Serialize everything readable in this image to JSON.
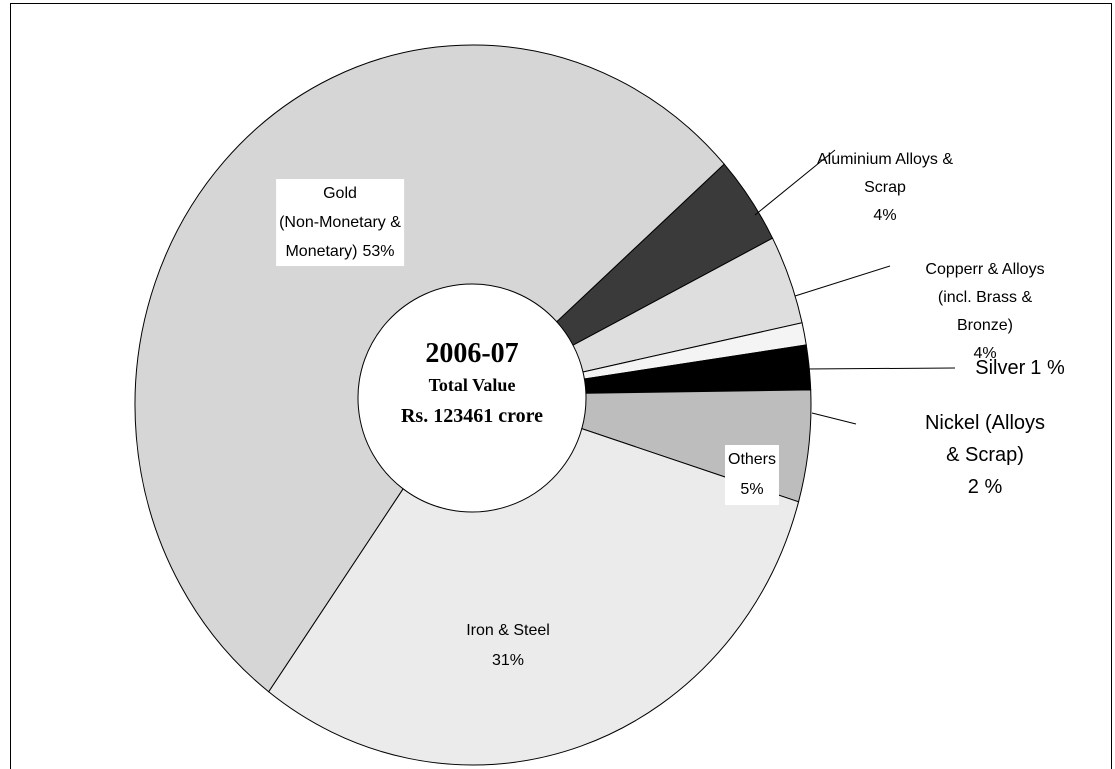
{
  "chart_data": {
    "type": "donut",
    "categories": [
      "Aluminium Alloys &\nScrap",
      "Copperr & Alloys\n(incl. Brass & Bronze)",
      "Silver",
      "Nickel (Alloys & Scrap)",
      "Others",
      "Iron & Steel",
      "Gold\n(Non-Monetary &\nMonetary)"
    ],
    "values": [
      4,
      4,
      1,
      2,
      5,
      31,
      53
    ],
    "value_labels": [
      "4%",
      "4%",
      "1 %",
      "2 %",
      "5%",
      "31%",
      "53%"
    ],
    "colors": [
      "#3a3a3a",
      "#dedede",
      "#f4f4f4",
      "#000000",
      "#bdbdbd",
      "#ebebeb",
      "#d6d6d6"
    ],
    "center_text": [
      "2006-07",
      "Total Value",
      "Rs. 123461 crore"
    ]
  }
}
